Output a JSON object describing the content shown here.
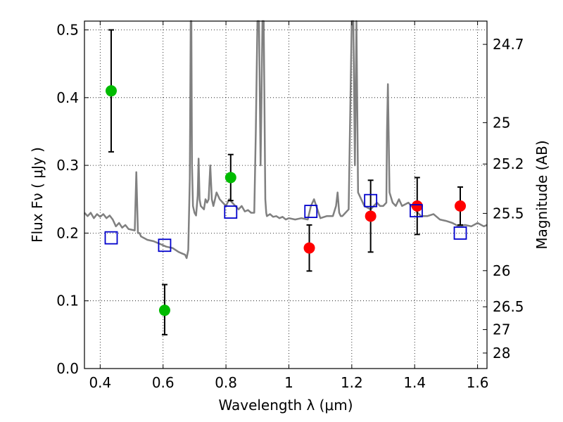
{
  "chart_data": {
    "type": "scatter",
    "xlabel": "Wavelength  λ (μm)",
    "ylabel": "Flux  Fν  ( μJy )",
    "y2label": "Magnitude (AB)",
    "xlim": [
      0.35,
      1.63
    ],
    "ylim": [
      0.0,
      0.513
    ],
    "grid": true,
    "x_ticks": [
      {
        "value": 0.4,
        "label": "0.4"
      },
      {
        "value": 0.6,
        "label": "0.6"
      },
      {
        "value": 0.8,
        "label": "0.8"
      },
      {
        "value": 1.0,
        "label": "1"
      },
      {
        "value": 1.2,
        "label": "1.2"
      },
      {
        "value": 1.4,
        "label": "1.4"
      },
      {
        "value": 1.6,
        "label": "1.6"
      }
    ],
    "y_ticks": [
      {
        "value": 0.0,
        "label": "0.0"
      },
      {
        "value": 0.1,
        "label": "0.1"
      },
      {
        "value": 0.2,
        "label": "0.2"
      },
      {
        "value": 0.3,
        "label": "0.3"
      },
      {
        "value": 0.4,
        "label": "0.4"
      },
      {
        "value": 0.5,
        "label": "0.5"
      }
    ],
    "y2_ticks": [
      {
        "mag": 24.7,
        "label": "24.7"
      },
      {
        "mag": 25.0,
        "label": "25"
      },
      {
        "mag": 25.2,
        "label": "25.2"
      },
      {
        "mag": 25.5,
        "label": "25.5"
      },
      {
        "mag": 26.0,
        "label": "26"
      },
      {
        "mag": 26.5,
        "label": "26.5"
      },
      {
        "mag": 27.0,
        "label": "27"
      },
      {
        "mag": 28.0,
        "label": "28"
      }
    ],
    "series": [
      {
        "type": "line",
        "color": "#808080",
        "x": [
          0.35,
          0.36,
          0.37,
          0.38,
          0.39,
          0.4,
          0.41,
          0.42,
          0.43,
          0.44,
          0.45,
          0.46,
          0.47,
          0.48,
          0.49,
          0.5,
          0.51,
          0.515,
          0.52,
          0.525,
          0.53,
          0.55,
          0.57,
          0.59,
          0.61,
          0.63,
          0.65,
          0.66,
          0.67,
          0.675,
          0.68,
          0.685,
          0.688,
          0.69,
          0.692,
          0.695,
          0.7,
          0.705,
          0.71,
          0.713,
          0.716,
          0.72,
          0.73,
          0.735,
          0.74,
          0.745,
          0.75,
          0.755,
          0.76,
          0.765,
          0.77,
          0.78,
          0.79,
          0.8,
          0.81,
          0.82,
          0.83,
          0.84,
          0.85,
          0.86,
          0.87,
          0.88,
          0.89,
          0.895,
          0.9,
          0.905,
          0.91,
          0.913,
          0.916,
          0.92,
          0.925,
          0.928,
          0.93,
          0.94,
          0.95,
          0.96,
          0.97,
          0.98,
          0.99,
          1.0,
          1.02,
          1.04,
          1.06,
          1.07,
          1.08,
          1.1,
          1.12,
          1.14,
          1.15,
          1.155,
          1.16,
          1.165,
          1.17,
          1.18,
          1.19,
          1.2,
          1.205,
          1.21,
          1.215,
          1.22,
          1.23,
          1.24,
          1.26,
          1.27,
          1.28,
          1.29,
          1.3,
          1.31,
          1.312,
          1.315,
          1.32,
          1.33,
          1.34,
          1.35,
          1.36,
          1.38,
          1.4,
          1.42,
          1.44,
          1.46,
          1.48,
          1.5,
          1.52,
          1.54,
          1.56,
          1.58,
          1.6,
          1.62,
          1.63
        ],
        "y": [
          0.23,
          0.225,
          0.23,
          0.222,
          0.228,
          0.224,
          0.228,
          0.222,
          0.226,
          0.22,
          0.21,
          0.215,
          0.208,
          0.212,
          0.206,
          0.205,
          0.204,
          0.29,
          0.2,
          0.2,
          0.195,
          0.19,
          0.188,
          0.184,
          0.18,
          0.178,
          0.172,
          0.17,
          0.168,
          0.163,
          0.175,
          0.28,
          0.513,
          0.513,
          0.3,
          0.24,
          0.23,
          0.226,
          0.255,
          0.31,
          0.25,
          0.24,
          0.235,
          0.25,
          0.245,
          0.25,
          0.3,
          0.25,
          0.24,
          0.25,
          0.26,
          0.25,
          0.245,
          0.24,
          0.25,
          0.245,
          0.24,
          0.235,
          0.24,
          0.232,
          0.234,
          0.23,
          0.23,
          0.35,
          0.513,
          0.513,
          0.3,
          0.4,
          0.513,
          0.513,
          0.25,
          0.23,
          0.225,
          0.228,
          0.224,
          0.225,
          0.222,
          0.224,
          0.22,
          0.222,
          0.22,
          0.222,
          0.22,
          0.24,
          0.25,
          0.222,
          0.225,
          0.225,
          0.24,
          0.26,
          0.23,
          0.225,
          0.225,
          0.23,
          0.235,
          0.513,
          0.513,
          0.3,
          0.513,
          0.26,
          0.25,
          0.24,
          0.235,
          0.24,
          0.245,
          0.24,
          0.24,
          0.245,
          0.35,
          0.42,
          0.26,
          0.245,
          0.24,
          0.25,
          0.24,
          0.245,
          0.235,
          0.225,
          0.225,
          0.228,
          0.22,
          0.218,
          0.215,
          0.21,
          0.212,
          0.21,
          0.215,
          0.21,
          0.212
        ]
      },
      {
        "type": "scatter",
        "marker": "circle",
        "color": "#00bb00",
        "x": [
          0.435,
          0.605,
          0.815
        ],
        "y": [
          0.41,
          0.086,
          0.282
        ],
        "yerr_low": [
          0.32,
          0.05,
          0.248
        ],
        "yerr_high": [
          0.5,
          0.124,
          0.316
        ]
      },
      {
        "type": "scatter",
        "marker": "circle",
        "color": "#ff0000",
        "x": [
          1.065,
          1.26,
          1.408,
          1.545
        ],
        "y": [
          0.178,
          0.225,
          0.24,
          0.24
        ],
        "yerr_low": [
          0.144,
          0.172,
          0.198,
          0.212
        ],
        "yerr_high": [
          0.212,
          0.278,
          0.282,
          0.268
        ]
      },
      {
        "type": "scatter",
        "marker": "open-square",
        "color": "#0000cc",
        "x": [
          0.435,
          0.605,
          0.815,
          1.07,
          1.26,
          1.405,
          1.545
        ],
        "y": [
          0.193,
          0.182,
          0.231,
          0.232,
          0.248,
          0.233,
          0.2
        ]
      }
    ]
  }
}
